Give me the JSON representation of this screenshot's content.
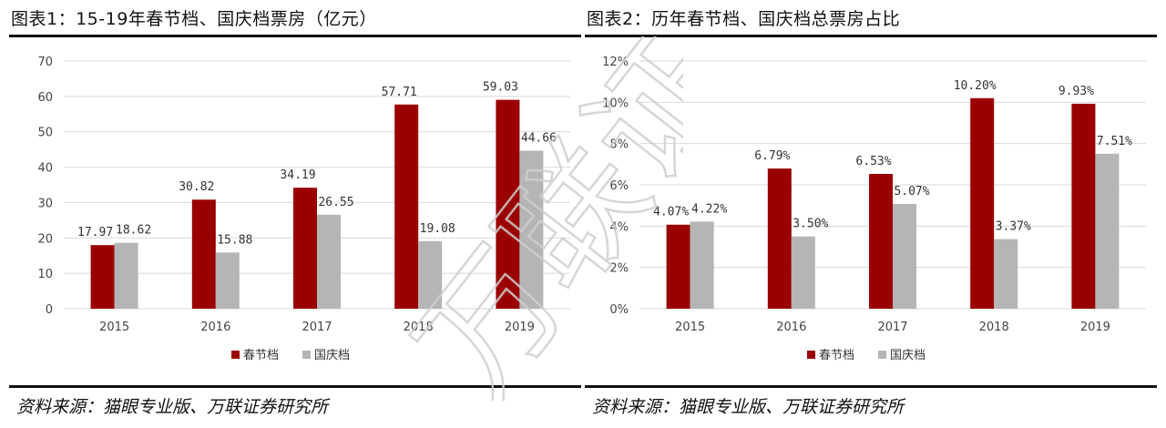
{
  "colors": {
    "spring": "#9B0000",
    "national": "#B5B5B5",
    "grid": "#D9D9D9"
  },
  "watermark": {
    "text": "万联证券"
  },
  "chart_data": [
    {
      "type": "bar",
      "title": "图表1：15-19年春节档、国庆档票房（亿元）",
      "categories": [
        "2015",
        "2016",
        "2017",
        "2018",
        "2019"
      ],
      "series": [
        {
          "name": "春节档",
          "values": [
            17.97,
            30.82,
            34.19,
            57.71,
            59.03
          ],
          "labels": [
            "17.97",
            "30.82",
            "34.19",
            "57.71",
            "59.03"
          ]
        },
        {
          "name": "国庆档",
          "values": [
            18.62,
            15.88,
            26.55,
            19.08,
            44.66
          ],
          "labels": [
            "18.62",
            "15.88",
            "26.55",
            "19.08",
            "44.66"
          ]
        }
      ],
      "ylim": [
        0,
        70
      ],
      "yticks": [
        "0",
        "10",
        "20",
        "30",
        "40",
        "50",
        "60",
        "70"
      ],
      "grid": true,
      "legend": "bottom",
      "source": "资料来源：猫眼专业版、万联证券研究所"
    },
    {
      "type": "bar",
      "title": "图表2：历年春节档、国庆档总票房占比",
      "categories": [
        "2015",
        "2016",
        "2017",
        "2018",
        "2019"
      ],
      "series": [
        {
          "name": "春节档",
          "values": [
            4.07,
            6.79,
            6.53,
            10.2,
            9.93
          ],
          "labels": [
            "4.07%",
            "6.79%",
            "6.53%",
            "10.20%",
            "9.93%"
          ]
        },
        {
          "name": "国庆档",
          "values": [
            4.22,
            3.5,
            5.07,
            3.37,
            7.51
          ],
          "labels": [
            "4.22%",
            "3.50%",
            "5.07%",
            "3.37%",
            "7.51%"
          ]
        }
      ],
      "ylim": [
        0,
        12
      ],
      "yticks": [
        "0%",
        "2%",
        "4%",
        "6%",
        "8%",
        "10%",
        "12%"
      ],
      "grid": true,
      "legend": "bottom",
      "source": "资料来源：猫眼专业版、万联证券研究所"
    }
  ]
}
